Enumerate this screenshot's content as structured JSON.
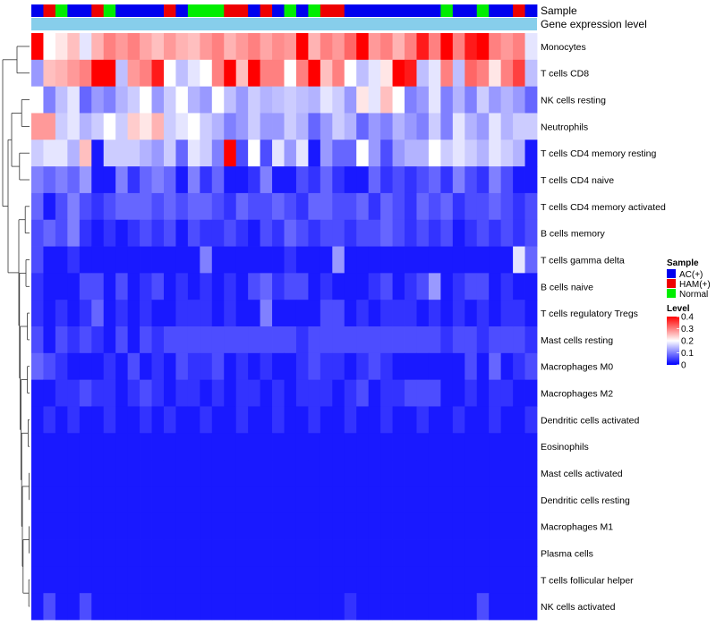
{
  "chart_data": {
    "type": "heatmap",
    "annotations": {
      "sample_label": "Sample",
      "gene_expression_label": "Gene expression level"
    },
    "sample_groups": [
      "AC",
      "HAM",
      "Normal",
      "AC",
      "AC",
      "HAM",
      "Normal",
      "AC",
      "AC",
      "AC",
      "AC",
      "HAM",
      "AC",
      "Normal",
      "Normal",
      "Normal",
      "HAM",
      "HAM",
      "AC",
      "HAM",
      "AC",
      "Normal",
      "AC",
      "Normal",
      "HAM",
      "HAM",
      "AC",
      "AC",
      "AC",
      "AC",
      "AC",
      "AC",
      "AC",
      "AC",
      "Normal",
      "AC",
      "AC",
      "Normal",
      "AC",
      "AC",
      "HAM",
      "AC"
    ],
    "rows": [
      {
        "name": "Monocytes",
        "values": [
          0.4,
          0.2,
          0.22,
          0.25,
          0.18,
          0.26,
          0.3,
          0.28,
          0.3,
          0.27,
          0.25,
          0.28,
          0.26,
          0.25,
          0.28,
          0.3,
          0.26,
          0.28,
          0.3,
          0.27,
          0.29,
          0.28,
          0.4,
          0.26,
          0.3,
          0.28,
          0.32,
          0.4,
          0.28,
          0.3,
          0.26,
          0.3,
          0.38,
          0.3,
          0.4,
          0.3,
          0.38,
          0.4,
          0.3,
          0.28,
          0.3,
          0.18
        ]
      },
      {
        "name": "T cells CD8",
        "values": [
          0.12,
          0.25,
          0.26,
          0.28,
          0.3,
          0.4,
          0.4,
          0.15,
          0.28,
          0.3,
          0.38,
          0.2,
          0.15,
          0.18,
          0.2,
          0.3,
          0.4,
          0.25,
          0.4,
          0.3,
          0.3,
          0.2,
          0.3,
          0.4,
          0.25,
          0.3,
          0.2,
          0.15,
          0.18,
          0.22,
          0.4,
          0.38,
          0.15,
          0.18,
          0.3,
          0.15,
          0.32,
          0.3,
          0.22,
          0.3,
          0.35,
          0.15
        ]
      },
      {
        "name": "NK cells resting",
        "values": [
          0.2,
          0.1,
          0.15,
          0.18,
          0.08,
          0.12,
          0.1,
          0.14,
          0.16,
          0.2,
          0.12,
          0.16,
          0.2,
          0.14,
          0.12,
          0.2,
          0.15,
          0.12,
          0.16,
          0.14,
          0.15,
          0.16,
          0.15,
          0.14,
          0.18,
          0.16,
          0.12,
          0.22,
          0.18,
          0.25,
          0.2,
          0.1,
          0.12,
          0.18,
          0.1,
          0.14,
          0.1,
          0.16,
          0.12,
          0.14,
          0.12,
          0.08
        ]
      },
      {
        "name": "Neutrophils",
        "values": [
          0.28,
          0.28,
          0.16,
          0.18,
          0.14,
          0.16,
          0.2,
          0.16,
          0.24,
          0.22,
          0.26,
          0.16,
          0.18,
          0.2,
          0.16,
          0.14,
          0.1,
          0.12,
          0.16,
          0.12,
          0.12,
          0.16,
          0.14,
          0.08,
          0.12,
          0.16,
          0.14,
          0.08,
          0.12,
          0.1,
          0.14,
          0.12,
          0.1,
          0.16,
          0.1,
          0.18,
          0.14,
          0.12,
          0.18,
          0.14,
          0.16,
          0.16
        ]
      },
      {
        "name": "T cells CD4 memory resting",
        "values": [
          0.16,
          0.18,
          0.18,
          0.14,
          0.25,
          0.02,
          0.16,
          0.16,
          0.16,
          0.14,
          0.12,
          0.16,
          0.08,
          0.18,
          0.16,
          0.1,
          0.4,
          0.06,
          0.2,
          0.06,
          0.18,
          0.12,
          0.18,
          0.02,
          0.12,
          0.08,
          0.08,
          0.2,
          0.12,
          0.06,
          0.12,
          0.14,
          0.14,
          0.2,
          0.16,
          0.18,
          0.16,
          0.14,
          0.18,
          0.16,
          0.14,
          0.02
        ]
      },
      {
        "name": "T cells CD4 naive",
        "values": [
          0.1,
          0.08,
          0.1,
          0.08,
          0.12,
          0.02,
          0.02,
          0.1,
          0.04,
          0.08,
          0.1,
          0.08,
          0.02,
          0.1,
          0.04,
          0.08,
          0.02,
          0.02,
          0.04,
          0.1,
          0.02,
          0.02,
          0.06,
          0.04,
          0.08,
          0.04,
          0.02,
          0.02,
          0.08,
          0.04,
          0.06,
          0.04,
          0.06,
          0.08,
          0.04,
          0.1,
          0.06,
          0.04,
          0.1,
          0.06,
          0.02,
          0.02
        ]
      },
      {
        "name": "T cells CD4 memory activated",
        "values": [
          0.08,
          0.02,
          0.06,
          0.1,
          0.06,
          0.04,
          0.06,
          0.08,
          0.08,
          0.08,
          0.06,
          0.08,
          0.06,
          0.08,
          0.08,
          0.06,
          0.04,
          0.08,
          0.06,
          0.06,
          0.08,
          0.06,
          0.04,
          0.08,
          0.08,
          0.06,
          0.06,
          0.08,
          0.04,
          0.08,
          0.06,
          0.04,
          0.08,
          0.06,
          0.08,
          0.04,
          0.06,
          0.06,
          0.08,
          0.06,
          0.04,
          0.06
        ]
      },
      {
        "name": "B cells memory",
        "values": [
          0.06,
          0.08,
          0.06,
          0.1,
          0.04,
          0.02,
          0.04,
          0.02,
          0.04,
          0.06,
          0.04,
          0.06,
          0.02,
          0.06,
          0.04,
          0.04,
          0.06,
          0.04,
          0.02,
          0.06,
          0.04,
          0.08,
          0.06,
          0.04,
          0.06,
          0.06,
          0.04,
          0.06,
          0.06,
          0.08,
          0.06,
          0.04,
          0.06,
          0.04,
          0.06,
          0.02,
          0.04,
          0.06,
          0.04,
          0.06,
          0.04,
          0.06
        ]
      },
      {
        "name": "T cells gamma delta",
        "values": [
          0.06,
          0.02,
          0.02,
          0.04,
          0.02,
          0.02,
          0.02,
          0.02,
          0.02,
          0.02,
          0.02,
          0.02,
          0.02,
          0.02,
          0.1,
          0.02,
          0.02,
          0.02,
          0.02,
          0.02,
          0.02,
          0.04,
          0.02,
          0.02,
          0.02,
          0.12,
          0.02,
          0.02,
          0.02,
          0.02,
          0.02,
          0.02,
          0.02,
          0.02,
          0.02,
          0.02,
          0.02,
          0.02,
          0.02,
          0.02,
          0.18,
          0.08
        ]
      },
      {
        "name": "B cells naive",
        "values": [
          0.04,
          0.02,
          0.02,
          0.02,
          0.06,
          0.06,
          0.02,
          0.06,
          0.02,
          0.04,
          0.06,
          0.02,
          0.04,
          0.02,
          0.04,
          0.02,
          0.04,
          0.02,
          0.06,
          0.08,
          0.04,
          0.06,
          0.06,
          0.02,
          0.04,
          0.02,
          0.02,
          0.02,
          0.04,
          0.06,
          0.02,
          0.04,
          0.06,
          0.12,
          0.02,
          0.04,
          0.06,
          0.06,
          0.02,
          0.04,
          0.02,
          0.02
        ]
      },
      {
        "name": "T cells regulatory  Tregs",
        "values": [
          0.04,
          0.02,
          0.04,
          0.02,
          0.04,
          0.08,
          0.02,
          0.04,
          0.02,
          0.04,
          0.02,
          0.02,
          0.04,
          0.04,
          0.04,
          0.02,
          0.04,
          0.02,
          0.02,
          0.1,
          0.02,
          0.02,
          0.02,
          0.02,
          0.06,
          0.06,
          0.02,
          0.04,
          0.02,
          0.04,
          0.04,
          0.04,
          0.02,
          0.04,
          0.02,
          0.04,
          0.02,
          0.04,
          0.02,
          0.04,
          0.04,
          0.02
        ]
      },
      {
        "name": "Mast cells resting",
        "values": [
          0.06,
          0.02,
          0.06,
          0.04,
          0.06,
          0.04,
          0.02,
          0.06,
          0.02,
          0.06,
          0.04,
          0.06,
          0.06,
          0.06,
          0.06,
          0.06,
          0.06,
          0.06,
          0.06,
          0.06,
          0.06,
          0.06,
          0.04,
          0.06,
          0.06,
          0.06,
          0.06,
          0.06,
          0.06,
          0.06,
          0.06,
          0.06,
          0.06,
          0.06,
          0.04,
          0.06,
          0.06,
          0.04,
          0.06,
          0.06,
          0.06,
          0.04
        ]
      },
      {
        "name": "Macrophages M0",
        "values": [
          0.08,
          0.06,
          0.04,
          0.02,
          0.02,
          0.02,
          0.04,
          0.02,
          0.06,
          0.02,
          0.04,
          0.02,
          0.06,
          0.04,
          0.04,
          0.06,
          0.02,
          0.04,
          0.02,
          0.04,
          0.02,
          0.02,
          0.04,
          0.06,
          0.04,
          0.04,
          0.02,
          0.04,
          0.06,
          0.04,
          0.02,
          0.02,
          0.02,
          0.02,
          0.02,
          0.02,
          0.06,
          0.02,
          0.08,
          0.02,
          0.04,
          0.06
        ]
      },
      {
        "name": "Macrophages M2",
        "values": [
          0.02,
          0.02,
          0.04,
          0.04,
          0.06,
          0.04,
          0.04,
          0.02,
          0.04,
          0.06,
          0.04,
          0.02,
          0.04,
          0.04,
          0.02,
          0.04,
          0.02,
          0.04,
          0.04,
          0.02,
          0.04,
          0.02,
          0.04,
          0.04,
          0.04,
          0.02,
          0.04,
          0.06,
          0.02,
          0.04,
          0.04,
          0.06,
          0.06,
          0.06,
          0.02,
          0.02,
          0.04,
          0.02,
          0.04,
          0.04,
          0.02,
          0.02
        ]
      },
      {
        "name": "Dendritic cells activated",
        "values": [
          0.02,
          0.04,
          0.02,
          0.04,
          0.02,
          0.02,
          0.04,
          0.02,
          0.02,
          0.04,
          0.02,
          0.04,
          0.02,
          0.02,
          0.04,
          0.02,
          0.02,
          0.04,
          0.02,
          0.02,
          0.04,
          0.02,
          0.02,
          0.04,
          0.02,
          0.02,
          0.04,
          0.02,
          0.02,
          0.04,
          0.02,
          0.02,
          0.04,
          0.02,
          0.02,
          0.04,
          0.02,
          0.02,
          0.04,
          0.02,
          0.02,
          0.04
        ]
      },
      {
        "name": "Eosinophils",
        "values": [
          0.02,
          0.02,
          0.02,
          0.02,
          0.02,
          0.02,
          0.02,
          0.02,
          0.02,
          0.02,
          0.02,
          0.02,
          0.02,
          0.02,
          0.02,
          0.02,
          0.02,
          0.02,
          0.02,
          0.02,
          0.02,
          0.02,
          0.02,
          0.02,
          0.02,
          0.02,
          0.02,
          0.02,
          0.02,
          0.02,
          0.02,
          0.02,
          0.02,
          0.02,
          0.02,
          0.02,
          0.02,
          0.02,
          0.02,
          0.02,
          0.02,
          0.02
        ]
      },
      {
        "name": "Mast cells activated",
        "values": [
          0.02,
          0.02,
          0.02,
          0.02,
          0.02,
          0.02,
          0.02,
          0.02,
          0.02,
          0.02,
          0.02,
          0.02,
          0.02,
          0.02,
          0.02,
          0.02,
          0.02,
          0.02,
          0.02,
          0.02,
          0.02,
          0.02,
          0.02,
          0.02,
          0.02,
          0.02,
          0.02,
          0.02,
          0.02,
          0.02,
          0.02,
          0.02,
          0.02,
          0.02,
          0.02,
          0.02,
          0.02,
          0.02,
          0.02,
          0.02,
          0.02,
          0.02
        ]
      },
      {
        "name": "Dendritic cells resting",
        "values": [
          0.02,
          0.02,
          0.02,
          0.02,
          0.02,
          0.02,
          0.02,
          0.02,
          0.02,
          0.02,
          0.02,
          0.02,
          0.02,
          0.02,
          0.02,
          0.02,
          0.02,
          0.02,
          0.02,
          0.02,
          0.02,
          0.02,
          0.02,
          0.02,
          0.02,
          0.02,
          0.02,
          0.02,
          0.02,
          0.02,
          0.02,
          0.02,
          0.02,
          0.02,
          0.02,
          0.02,
          0.02,
          0.02,
          0.02,
          0.02,
          0.02,
          0.02
        ]
      },
      {
        "name": "Macrophages M1",
        "values": [
          0.02,
          0.02,
          0.02,
          0.02,
          0.02,
          0.02,
          0.02,
          0.02,
          0.02,
          0.02,
          0.02,
          0.02,
          0.02,
          0.02,
          0.02,
          0.02,
          0.02,
          0.02,
          0.02,
          0.02,
          0.02,
          0.02,
          0.02,
          0.02,
          0.02,
          0.02,
          0.02,
          0.02,
          0.02,
          0.02,
          0.02,
          0.02,
          0.02,
          0.02,
          0.02,
          0.02,
          0.02,
          0.02,
          0.02,
          0.02,
          0.02,
          0.02
        ]
      },
      {
        "name": "Plasma cells",
        "values": [
          0.02,
          0.02,
          0.02,
          0.02,
          0.02,
          0.02,
          0.02,
          0.02,
          0.02,
          0.02,
          0.02,
          0.02,
          0.02,
          0.02,
          0.02,
          0.02,
          0.02,
          0.02,
          0.02,
          0.02,
          0.02,
          0.02,
          0.02,
          0.02,
          0.02,
          0.02,
          0.02,
          0.02,
          0.02,
          0.02,
          0.02,
          0.02,
          0.02,
          0.02,
          0.02,
          0.02,
          0.02,
          0.02,
          0.02,
          0.02,
          0.02,
          0.02
        ]
      },
      {
        "name": "T cells follicular helper",
        "values": [
          0.02,
          0.02,
          0.02,
          0.02,
          0.02,
          0.02,
          0.02,
          0.02,
          0.02,
          0.02,
          0.02,
          0.02,
          0.02,
          0.02,
          0.02,
          0.02,
          0.02,
          0.02,
          0.02,
          0.02,
          0.02,
          0.02,
          0.02,
          0.02,
          0.02,
          0.02,
          0.02,
          0.02,
          0.02,
          0.02,
          0.02,
          0.02,
          0.02,
          0.02,
          0.02,
          0.02,
          0.02,
          0.02,
          0.02,
          0.02,
          0.02,
          0.02
        ]
      },
      {
        "name": "NK cells activated",
        "values": [
          0.02,
          0.06,
          0.02,
          0.02,
          0.06,
          0.02,
          0.02,
          0.02,
          0.02,
          0.02,
          0.02,
          0.02,
          0.02,
          0.02,
          0.02,
          0.02,
          0.02,
          0.02,
          0.02,
          0.02,
          0.02,
          0.02,
          0.02,
          0.02,
          0.02,
          0.02,
          0.04,
          0.02,
          0.02,
          0.02,
          0.02,
          0.02,
          0.02,
          0.02,
          0.02,
          0.02,
          0.02,
          0.06,
          0.02,
          0.02,
          0.02,
          0.02
        ]
      }
    ],
    "color_scale": {
      "min": 0,
      "max": 0.4,
      "mid": 0.2,
      "low_color": "#0000ff",
      "mid_color": "#ffffff",
      "high_color": "#ff0000"
    },
    "legend": {
      "position": "right",
      "sample_title": "Sample",
      "sample_entries": [
        {
          "key": "AC",
          "label": "AC(+)",
          "color": "#0000ee"
        },
        {
          "key": "HAM",
          "label": "HAM(+)",
          "color": "#ee0000"
        },
        {
          "key": "Normal",
          "label": "Normal",
          "color": "#00ee00"
        }
      ],
      "level_title": "Level",
      "level_ticks": [
        {
          "value": 0.4,
          "label": "0.4"
        },
        {
          "value": 0.3,
          "label": "0.3"
        },
        {
          "value": 0.2,
          "label": "0.2"
        },
        {
          "value": 0.1,
          "label": "0.1"
        },
        {
          "value": 0,
          "label": "0"
        }
      ]
    },
    "gene_expression_color": "#87ceeb",
    "dendrogram": {
      "merges": [
        {
          "rows": [
            0,
            1
          ],
          "height": 0.35
        },
        {
          "rows": [
            2,
            3
          ],
          "height": 0.22
        },
        {
          "rows": [
            4,
            5
          ],
          "height": 0.28
        },
        {
          "rows": [
            6,
            7
          ],
          "height": 0.12
        },
        {
          "rows": [
            8,
            9
          ],
          "height": 0.1
        },
        {
          "rows": [
            10,
            11
          ],
          "height": 0.06
        },
        {
          "rows": [
            12,
            13
          ],
          "height": 0.06
        },
        {
          "rows": [
            14,
            15
          ],
          "height": 0.04
        },
        {
          "rows": [
            16,
            17
          ],
          "height": 0.01
        },
        {
          "rows": [
            18,
            19
          ],
          "height": 0.01
        },
        {
          "rows": [
            20,
            21
          ],
          "height": 0.02
        }
      ]
    }
  }
}
